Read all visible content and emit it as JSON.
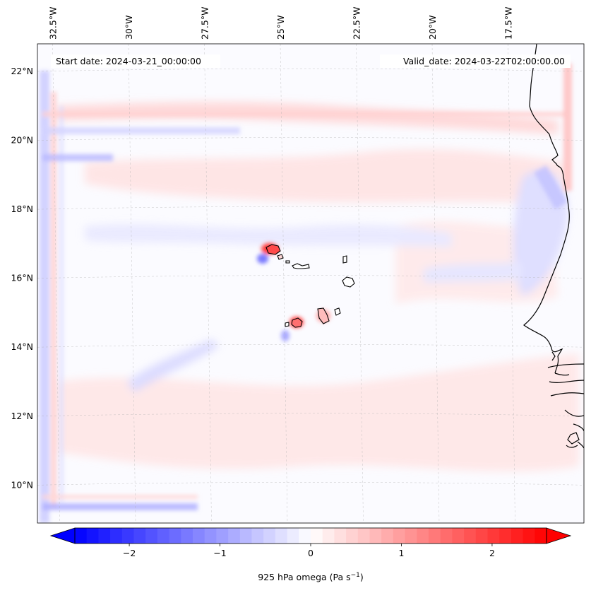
{
  "map": {
    "start_date_label": "Start date: 2024-03-21_00:00:00",
    "valid_date_label": "Valid_date: 2024-03-22T02:00:00.00",
    "extent": {
      "lon_min": -33.0,
      "lon_max": -15.0,
      "lat_min": 8.9,
      "lat_max": 22.8
    },
    "longitude_ticks": [
      {
        "value": -32.5,
        "label": "32.5°W"
      },
      {
        "value": -30.0,
        "label": "30°W"
      },
      {
        "value": -27.5,
        "label": "27.5°W"
      },
      {
        "value": -25.0,
        "label": "25°W"
      },
      {
        "value": -22.5,
        "label": "22.5°W"
      },
      {
        "value": -20.0,
        "label": "20°W"
      },
      {
        "value": -17.5,
        "label": "17.5°W"
      }
    ],
    "latitude_ticks": [
      {
        "value": 22,
        "label": "22°N"
      },
      {
        "value": 20,
        "label": "20°N"
      },
      {
        "value": 18,
        "label": "18°N"
      },
      {
        "value": 16,
        "label": "16°N"
      },
      {
        "value": 14,
        "label": "14°N"
      },
      {
        "value": 12,
        "label": "12°N"
      },
      {
        "value": 10,
        "label": "10°N"
      }
    ],
    "field_colors": {
      "strong_negative": "#0000ff",
      "neutral": "#ffffff",
      "strong_positive": "#ff0000"
    },
    "coastline_color": "#000000",
    "gridline_color": "#b0b0b0"
  },
  "colorbar": {
    "label_main": "925 hPa omega (Pa s",
    "label_exponent": "−1",
    "label_close": ")",
    "range": [
      -2.6,
      2.6
    ],
    "extend": "both",
    "ticks": [
      {
        "value": -2,
        "label": "−2"
      },
      {
        "value": -1,
        "label": "−1"
      },
      {
        "value": 0,
        "label": "0"
      },
      {
        "value": 1,
        "label": "1"
      },
      {
        "value": 2,
        "label": "2"
      }
    ],
    "levels": 40,
    "colormap": "bwr"
  }
}
